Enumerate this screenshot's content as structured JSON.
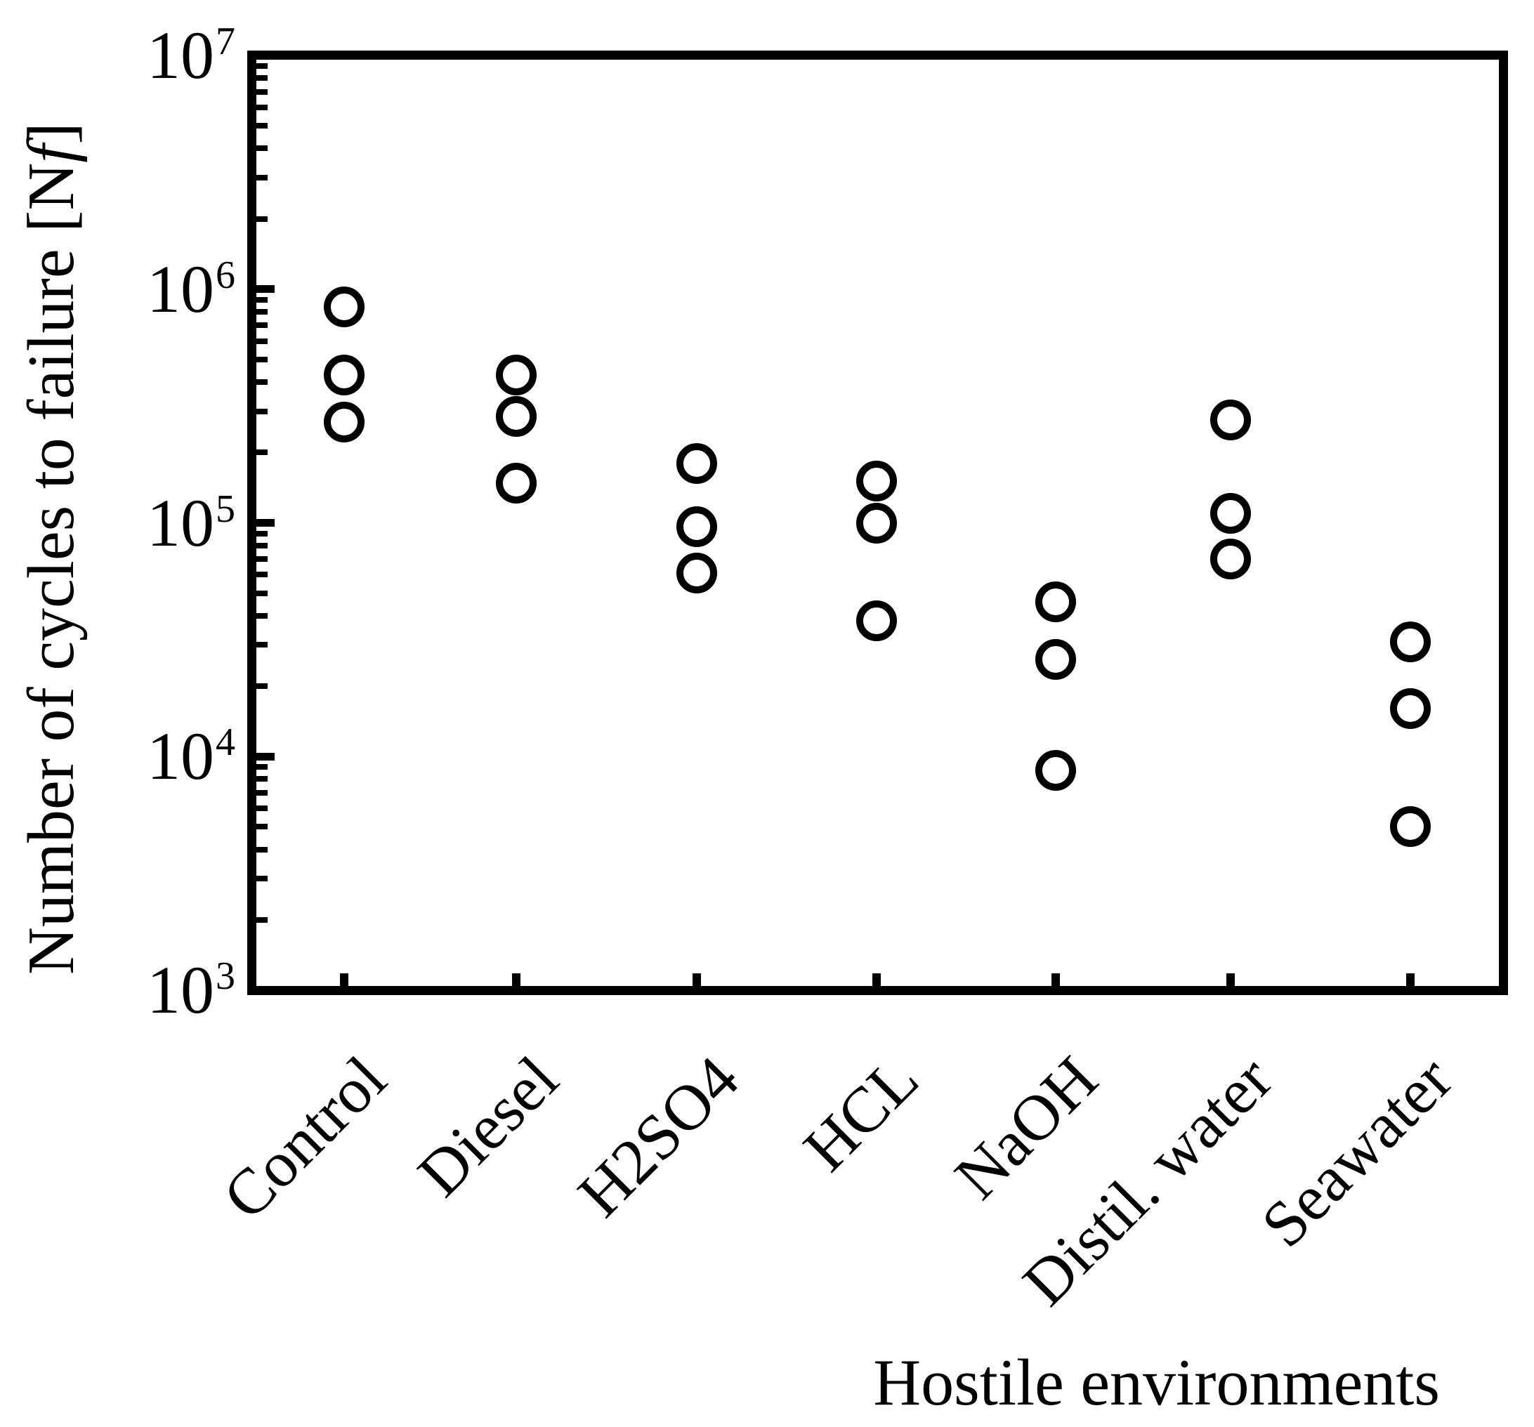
{
  "colors": {
    "foreground": "#000000",
    "background": "#ffffff"
  },
  "chart_data": {
    "type": "scatter",
    "title": "",
    "xlabel": "Hostile environments",
    "ylabel": "Number of cycles to failure [Nf]",
    "ylabel_parts": {
      "prefix": "Number of cycles to failure [N",
      "italic_suffix_letter": "f",
      "suffix": "]"
    },
    "y_scale": "log",
    "ylim": [
      1000,
      10000000
    ],
    "grid": false,
    "legend": "none",
    "marker": "open-circle",
    "y_ticks": [
      {
        "base": "10",
        "exp": "7"
      },
      {
        "base": "10",
        "exp": "6"
      },
      {
        "base": "10",
        "exp": "5"
      },
      {
        "base": "10",
        "exp": "4"
      },
      {
        "base": "10",
        "exp": "3"
      }
    ],
    "categories": [
      "Control",
      "Diesel",
      "H2SO4",
      "HCL",
      "NaOH",
      "Distil. water",
      "Seawater"
    ],
    "series": [
      {
        "name": "Number of cycles to failure",
        "values_per_category": [
          [
            840000,
            430000,
            270000
          ],
          [
            430000,
            285000,
            148000
          ],
          [
            180000,
            96000,
            61000
          ],
          [
            151000,
            100000,
            38000
          ],
          [
            46000,
            26000,
            8700
          ],
          [
            275000,
            110000,
            70000
          ],
          [
            31000,
            16000,
            5000
          ]
        ]
      }
    ]
  }
}
